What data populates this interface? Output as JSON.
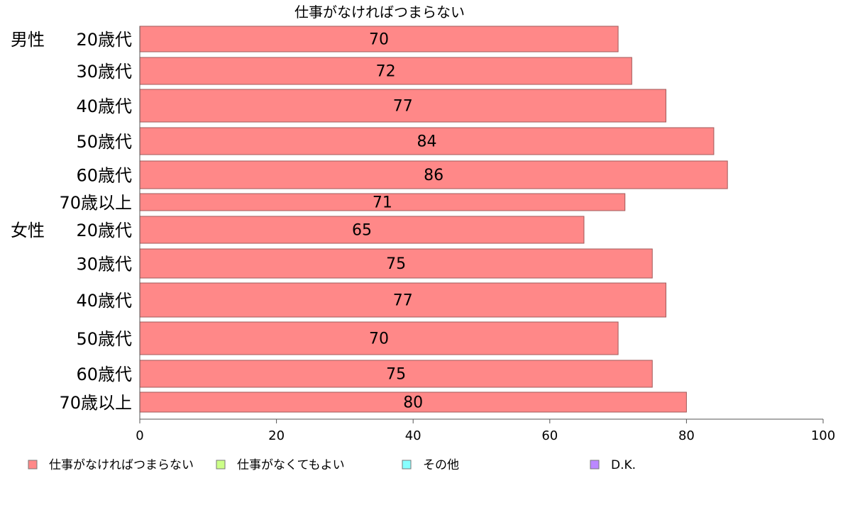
{
  "chart_data": {
    "type": "bar",
    "orientation": "horizontal",
    "stacked": true,
    "title": "仕事がなければつまらない",
    "groups": [
      {
        "label": "男性",
        "start_index": 0
      },
      {
        "label": "女性",
        "start_index": 6
      }
    ],
    "categories": [
      "20歳代",
      "30歳代",
      "40歳代",
      "50歳代",
      "60歳代",
      "70歳以上",
      "20歳代",
      "30歳代",
      "40歳代",
      "50歳代",
      "60歳代",
      "70歳以上"
    ],
    "series": [
      {
        "name": "仕事がなければつまらない",
        "color": "#ff8888",
        "values": [
          70,
          72,
          77,
          84,
          86,
          71,
          65,
          75,
          77,
          70,
          75,
          80
        ]
      }
    ],
    "legend": [
      {
        "name": "仕事がなければつまらない",
        "color": "#ff8888"
      },
      {
        "name": "仕事がなくてもよい",
        "color": "#ccff88"
      },
      {
        "name": "その他",
        "color": "#88ffff"
      },
      {
        "name": "D.K.",
        "color": "#bb88ff"
      }
    ],
    "xlim": [
      0,
      100
    ],
    "xticks": [
      0,
      20,
      40,
      60,
      80,
      100
    ],
    "grid": false,
    "legend_position": "bottom"
  }
}
